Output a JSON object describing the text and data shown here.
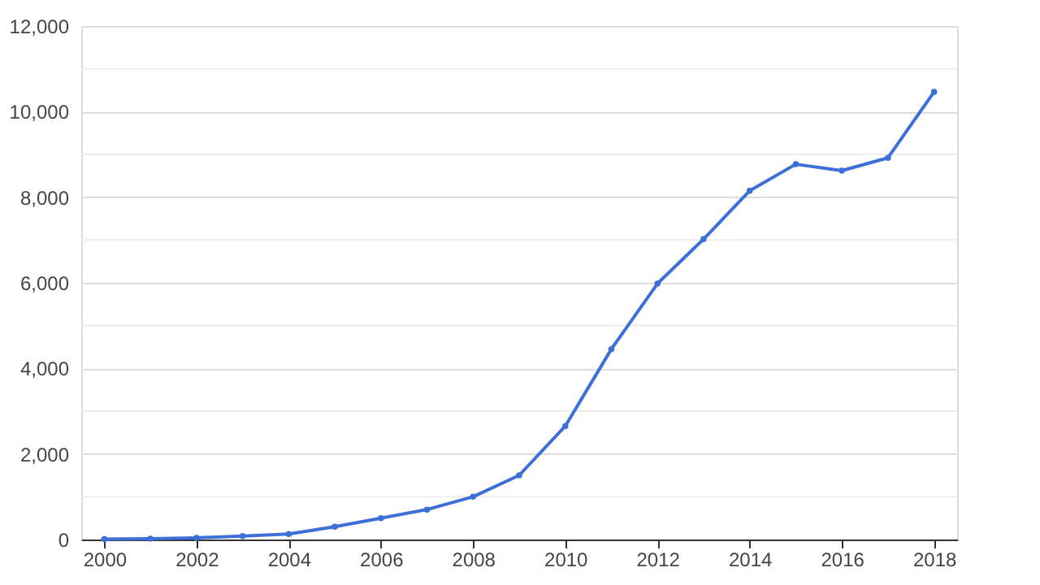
{
  "chart_data": {
    "type": "line",
    "x": [
      2000,
      2001,
      2002,
      2003,
      2004,
      2005,
      2006,
      2007,
      2008,
      2009,
      2010,
      2011,
      2012,
      2013,
      2014,
      2015,
      2016,
      2017,
      2018
    ],
    "series": [
      {
        "color": "#3d6fd8",
        "values": [
          10,
          20,
          40,
          80,
          130,
          300,
          500,
          700,
          1000,
          1500,
          2650,
          4450,
          5980,
          7020,
          8150,
          8770,
          8620,
          8920,
          10460
        ]
      }
    ],
    "xlim": [
      1999.5,
      2018.5
    ],
    "xticks": [
      2000,
      2002,
      2004,
      2006,
      2008,
      2010,
      2012,
      2014,
      2016,
      2018
    ],
    "ylim": [
      0,
      12000
    ],
    "yticks": [
      {
        "value": 0,
        "label": "0"
      },
      {
        "value": 1000,
        "label": null
      },
      {
        "value": 2000,
        "label": "2,000"
      },
      {
        "value": 3000,
        "label": null
      },
      {
        "value": 4000,
        "label": "4,000"
      },
      {
        "value": 5000,
        "label": null
      },
      {
        "value": 6000,
        "label": "6,000"
      },
      {
        "value": 7000,
        "label": null
      },
      {
        "value": 8000,
        "label": "8,000"
      },
      {
        "value": 9000,
        "label": null
      },
      {
        "value": 10000,
        "label": "10,000"
      },
      {
        "value": 11000,
        "label": null
      },
      {
        "value": 12000,
        "label": "12,000"
      }
    ],
    "grid": "y",
    "marker": "circle",
    "line_style": "solid",
    "legend": false
  }
}
